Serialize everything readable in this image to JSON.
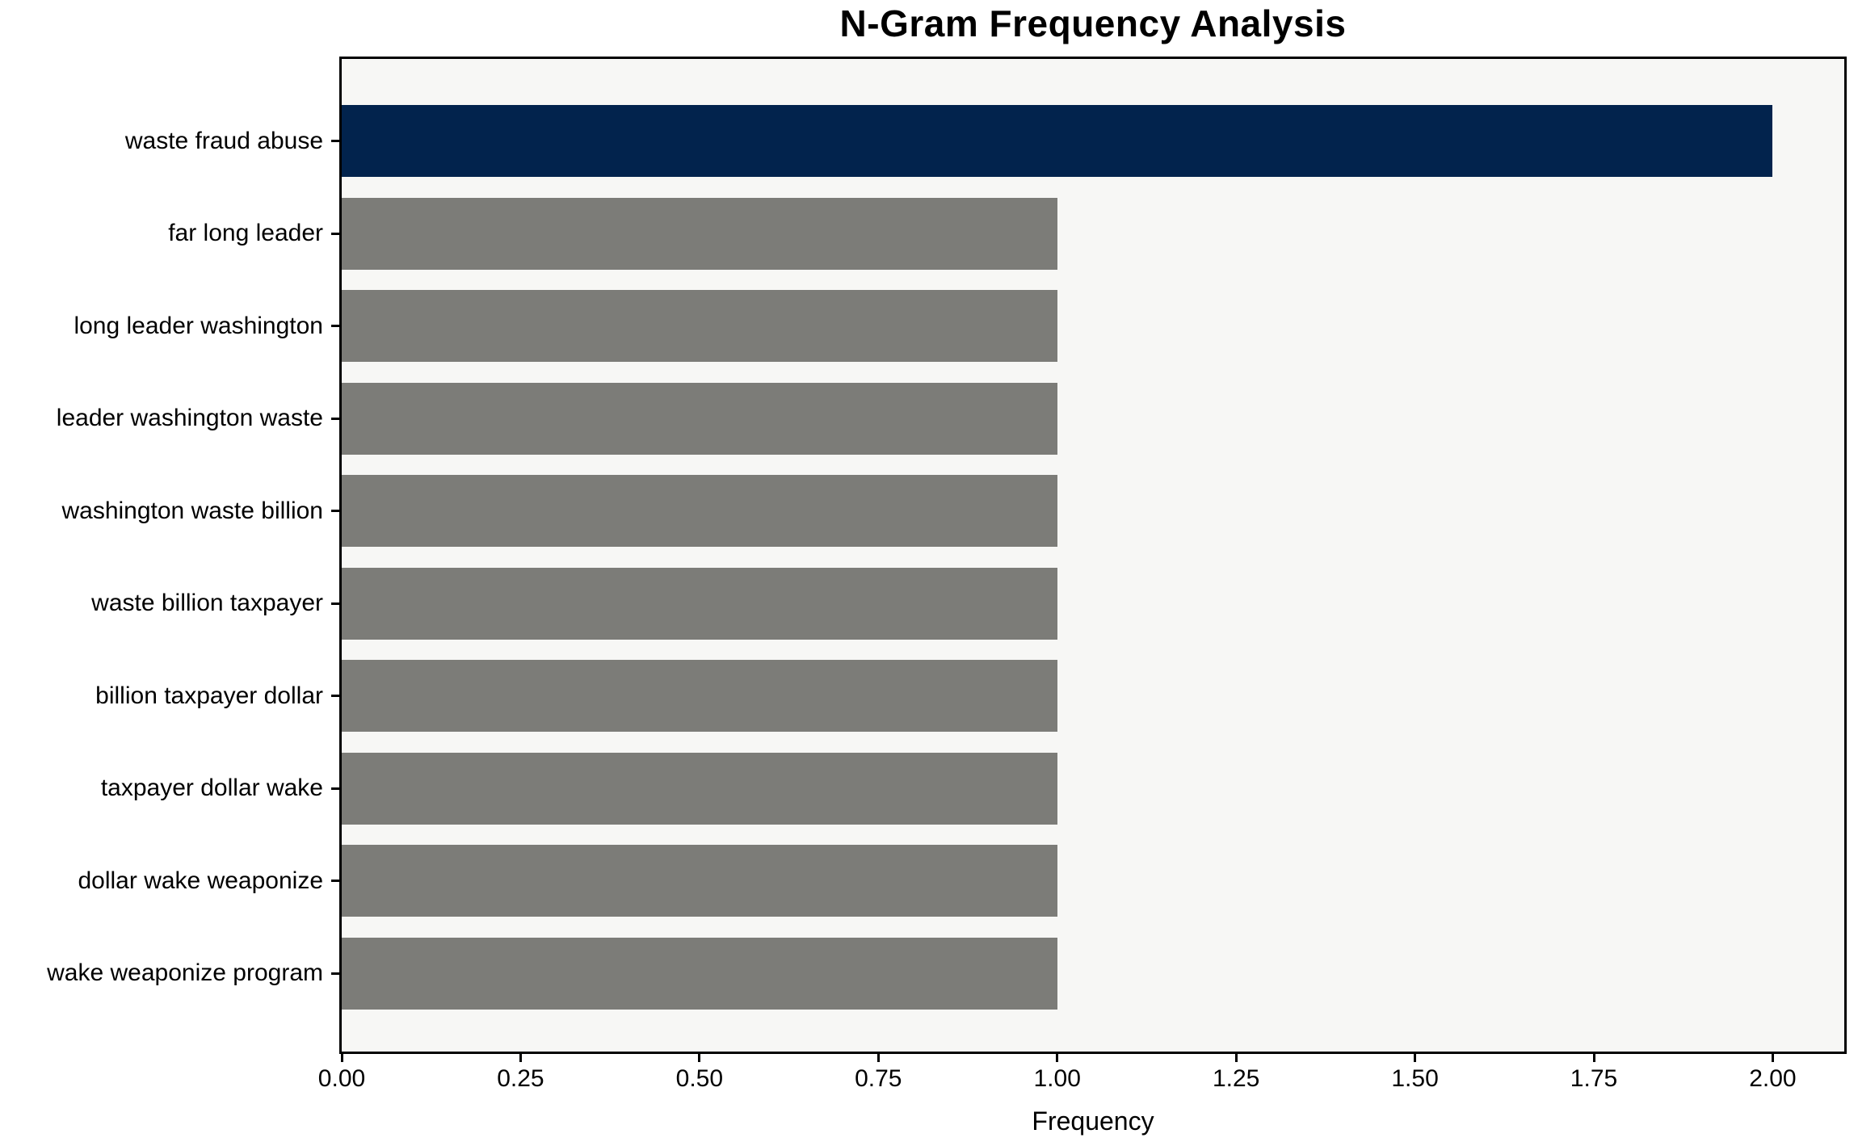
{
  "figure": {
    "background": "#ffffff",
    "plot_background": "#f7f7f5",
    "axis_color": "#000000",
    "text_color": "#000000"
  },
  "chart_data": {
    "type": "bar",
    "orientation": "horizontal",
    "title": "N-Gram Frequency Analysis",
    "xlabel": "Frequency",
    "ylabel": "",
    "categories": [
      "waste fraud abuse",
      "far long leader",
      "long leader washington",
      "leader washington waste",
      "washington waste billion",
      "waste billion taxpayer",
      "billion taxpayer dollar",
      "taxpayer dollar wake",
      "dollar wake weaponize",
      "wake weaponize program"
    ],
    "values": [
      2,
      1,
      1,
      1,
      1,
      1,
      1,
      1,
      1,
      1
    ],
    "highlight_index": 0,
    "colors": {
      "highlight_bar": "#02234d",
      "default_bar": "#7c7c78"
    },
    "xlim": [
      0,
      2.1
    ],
    "x_tick_values": [
      0,
      0.25,
      0.5,
      0.75,
      1.0,
      1.25,
      1.5,
      1.75,
      2.0
    ],
    "x_tick_labels": [
      "0.00",
      "0.25",
      "0.50",
      "0.75",
      "1.00",
      "1.25",
      "1.50",
      "1.75",
      "2.00"
    ],
    "grid": false,
    "legend": null
  }
}
